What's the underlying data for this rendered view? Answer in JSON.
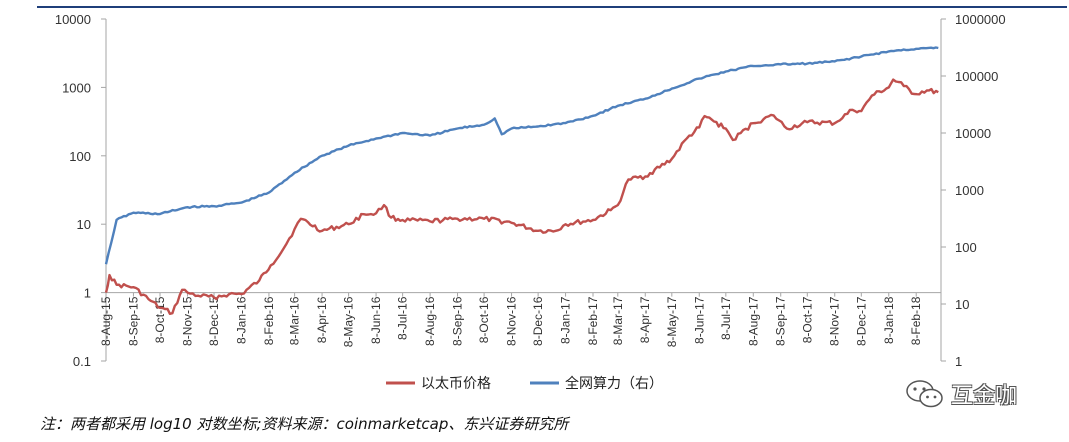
{
  "chart_data": {
    "type": "line",
    "y_scale": "log10",
    "x_tick_labels": [
      "8-Aug-15",
      "8-Sep-15",
      "8-Oct-15",
      "8-Nov-15",
      "8-Dec-15",
      "8-Jan-16",
      "8-Feb-16",
      "8-Mar-16",
      "8-Apr-16",
      "8-May-16",
      "8-Jun-16",
      "8-Jul-16",
      "8-Aug-16",
      "8-Sep-16",
      "8-Oct-16",
      "8-Nov-16",
      "8-Dec-16",
      "8-Jan-17",
      "8-Feb-17",
      "8-Mar-17",
      "8-Apr-17",
      "8-May-17",
      "8-Jun-17",
      "8-Jul-17",
      "8-Aug-17",
      "8-Sep-17",
      "8-Oct-17",
      "8-Nov-17",
      "8-Dec-17",
      "8-Jan-18",
      "8-Feb-18"
    ],
    "y_left": {
      "range": [
        0.1,
        10000
      ],
      "tick_labels": [
        "10000",
        "1000",
        "100",
        "10",
        "1",
        "0.1"
      ]
    },
    "y_right": {
      "range": [
        1,
        1000000
      ],
      "tick_labels": [
        "1000000",
        "100000",
        "10000",
        "1000",
        "100",
        "10",
        "1"
      ]
    },
    "grid": false,
    "legend_position": "bottom",
    "series": [
      {
        "name": "以太币价格",
        "axis": "left",
        "color": "#c0504d",
        "x": [
          "2015-08-08",
          "2015-08-12",
          "2015-08-20",
          "2015-09-08",
          "2015-09-25",
          "2015-10-08",
          "2015-10-22",
          "2015-11-02",
          "2015-11-08",
          "2015-11-20",
          "2015-12-08",
          "2015-12-25",
          "2016-01-08",
          "2016-01-28",
          "2016-02-10",
          "2016-02-25",
          "2016-03-08",
          "2016-03-15",
          "2016-04-08",
          "2016-05-08",
          "2016-05-25",
          "2016-06-08",
          "2016-06-17",
          "2016-06-25",
          "2016-07-08",
          "2016-08-08",
          "2016-09-08",
          "2016-10-08",
          "2016-11-08",
          "2016-12-08",
          "2016-12-28",
          "2017-01-08",
          "2017-02-08",
          "2017-02-28",
          "2017-03-08",
          "2017-03-20",
          "2017-04-08",
          "2017-05-08",
          "2017-05-25",
          "2017-06-08",
          "2017-06-14",
          "2017-07-08",
          "2017-07-16",
          "2017-08-08",
          "2017-08-31",
          "2017-09-15",
          "2017-10-08",
          "2017-11-08",
          "2017-11-28",
          "2017-12-08",
          "2017-12-20",
          "2018-01-08",
          "2018-01-13",
          "2018-01-25",
          "2018-02-06",
          "2018-02-20",
          "2018-03-05"
        ],
        "y": [
          1.0,
          1.8,
          1.3,
          1.2,
          0.8,
          0.6,
          0.5,
          1.1,
          1.0,
          0.9,
          0.85,
          0.95,
          0.95,
          1.5,
          2.5,
          4.5,
          8.5,
          12.0,
          8.0,
          10.0,
          14.0,
          14.5,
          19.0,
          12.5,
          11.5,
          11.0,
          12.0,
          12.0,
          10.5,
          8.0,
          8.0,
          10.0,
          11.5,
          16.0,
          19.0,
          45.0,
          50.0,
          90.0,
          180.0,
          260.0,
          380.0,
          250.0,
          170.0,
          300.0,
          390.0,
          250.0,
          310.0,
          300.0,
          470.0,
          450.0,
          760.0,
          1000.0,
          1300.0,
          1050.0,
          800.0,
          900.0,
          850.0
        ]
      },
      {
        "name": "全网算力（右）",
        "axis": "right",
        "color": "#4f81bd",
        "x": [
          "2015-08-08",
          "2015-08-20",
          "2015-09-08",
          "2015-10-08",
          "2015-11-08",
          "2015-12-08",
          "2016-01-08",
          "2016-02-08",
          "2016-03-08",
          "2016-04-08",
          "2016-05-08",
          "2016-06-08",
          "2016-07-08",
          "2016-08-08",
          "2016-09-08",
          "2016-10-08",
          "2016-10-20",
          "2016-10-28",
          "2016-11-08",
          "2016-12-08",
          "2017-01-08",
          "2017-02-08",
          "2017-03-08",
          "2017-04-08",
          "2017-05-08",
          "2017-06-08",
          "2017-07-08",
          "2017-08-08",
          "2017-09-08",
          "2017-10-08",
          "2017-11-08",
          "2017-12-08",
          "2018-01-08",
          "2018-02-08",
          "2018-03-05"
        ],
        "y": [
          50,
          300,
          400,
          380,
          500,
          520,
          600,
          900,
          2000,
          4000,
          6000,
          8000,
          10000,
          9000,
          12000,
          14000,
          18000,
          9500,
          12000,
          13000,
          15000,
          20000,
          30000,
          40000,
          60000,
          90000,
          120000,
          150000,
          160000,
          165000,
          180000,
          220000,
          270000,
          300000,
          310000
        ]
      }
    ]
  },
  "footnote": "注：两者都采用 log10 对数坐标;资料来源：coinmarketcap、东兴证券研究所",
  "watermark": {
    "text": "互金咖",
    "icon": "wechat-icon"
  }
}
